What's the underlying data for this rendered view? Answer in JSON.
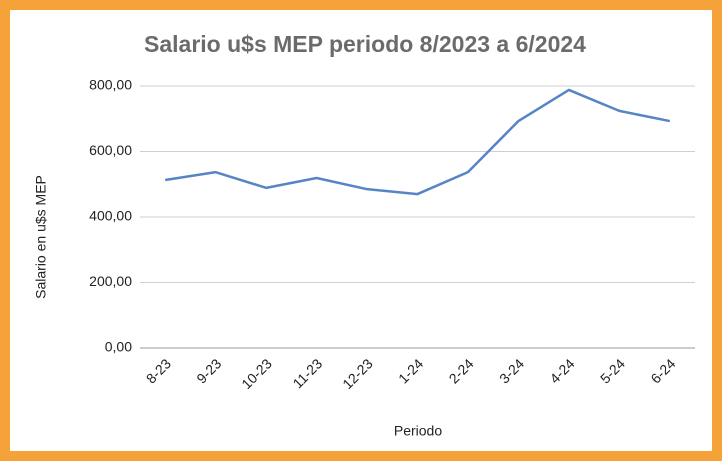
{
  "chart_data": {
    "type": "line",
    "title": "Salario u$s MEP periodo 8/2023 a 6/2024",
    "x_label": "Periodo",
    "y_label": "Salario en  u$s MEP",
    "categories": [
      "8-23",
      "9-23",
      "10-23",
      "11-23",
      "12-23",
      "1-24",
      "2-24",
      "3-24",
      "4-24",
      "5-24",
      "6-24"
    ],
    "series": [
      {
        "name": "Salario u$s MEP",
        "color": "#5585c5",
        "values": [
          513,
          537,
          489,
          519,
          485,
          470,
          537,
          693,
          788,
          724,
          693
        ]
      }
    ],
    "ylim": [
      0,
      800
    ],
    "yticks": [
      {
        "value": 0,
        "label": "0,00"
      },
      {
        "value": 200,
        "label": "200,00"
      },
      {
        "value": 400,
        "label": "400,00"
      },
      {
        "value": 600,
        "label": "600,00"
      },
      {
        "value": 800,
        "label": "800,00"
      }
    ],
    "grid": true
  }
}
